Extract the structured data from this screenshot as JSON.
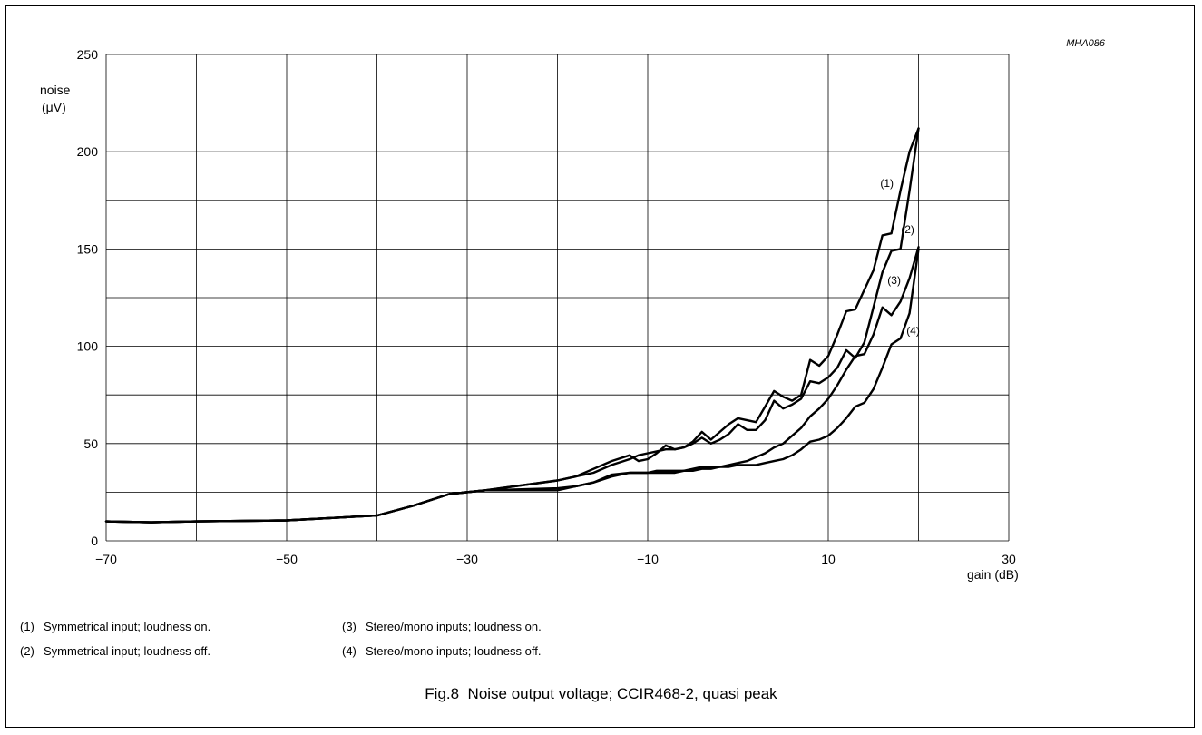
{
  "chart_data": {
    "type": "line",
    "code": "MHA086",
    "ylabel_line1": "noise",
    "ylabel_line2": "(μV)",
    "xlabel": "gain (dB)",
    "xlim": [
      -70,
      30
    ],
    "ylim": [
      0,
      250
    ],
    "x_tick_labels": [
      {
        "value": -70,
        "label": "−70"
      },
      {
        "value": -50,
        "label": "−50"
      },
      {
        "value": -30,
        "label": "−30"
      },
      {
        "value": -10,
        "label": "−10"
      },
      {
        "value": 10,
        "label": "10"
      },
      {
        "value": 30,
        "label": "30"
      }
    ],
    "y_tick_labels": [
      {
        "value": 0,
        "label": "0"
      },
      {
        "value": 50,
        "label": "50"
      },
      {
        "value": 100,
        "label": "100"
      },
      {
        "value": 150,
        "label": "150"
      },
      {
        "value": 200,
        "label": "200"
      },
      {
        "value": 250,
        "label": "250"
      }
    ],
    "grid_x_step": 10,
    "grid_y_step": 25,
    "grid": true,
    "series": [
      {
        "name": "(1)",
        "label_at": [
          16.5,
          182
        ],
        "x": [
          -70,
          -65,
          -60,
          -50,
          -40,
          -36,
          -32,
          -28,
          -20,
          -18,
          -16,
          -14,
          -12,
          -11,
          -10,
          -9,
          -8,
          -7,
          -6,
          -5,
          -4,
          -3,
          -2,
          -1,
          0,
          1,
          2,
          3,
          4,
          5,
          6,
          7,
          8,
          9,
          10,
          11,
          12,
          13,
          14,
          15,
          16,
          17,
          18,
          19,
          20
        ],
        "y": [
          10,
          9.5,
          10,
          10.5,
          13,
          18,
          24,
          26,
          31,
          33,
          37,
          41,
          44,
          41,
          42,
          45,
          49,
          47,
          48,
          51,
          56,
          52,
          56,
          60,
          63,
          62,
          61,
          69,
          77,
          74,
          72,
          75,
          93,
          90,
          95,
          106,
          118,
          119,
          129,
          139,
          157,
          158,
          180,
          200,
          212
        ]
      },
      {
        "name": "(2)",
        "label_at": [
          18.8,
          158
        ],
        "x": [
          -70,
          -65,
          -60,
          -50,
          -40,
          -36,
          -32,
          -28,
          -20,
          -18,
          -16,
          -14,
          -12,
          -11,
          -10,
          -9,
          -8,
          -7,
          -6,
          -5,
          -4,
          -3,
          -2,
          -1,
          0,
          1,
          2,
          3,
          4,
          5,
          6,
          7,
          8,
          9,
          10,
          11,
          12,
          13,
          14,
          15,
          16,
          17,
          18,
          19,
          20
        ],
        "y": [
          10,
          9.5,
          10,
          10.5,
          13,
          18,
          24,
          26,
          31,
          33,
          35,
          39,
          42,
          44,
          45,
          46,
          47,
          47,
          48,
          50,
          53,
          50,
          52,
          55,
          60,
          57,
          57,
          62,
          72,
          68,
          70,
          73,
          82,
          81,
          84,
          89,
          98,
          94,
          102,
          120,
          138,
          149,
          150,
          180,
          212
        ]
      },
      {
        "name": "(3)",
        "label_at": [
          17.3,
          132
        ],
        "x": [
          -70,
          -65,
          -60,
          -50,
          -40,
          -36,
          -32,
          -28,
          -20,
          -18,
          -16,
          -14,
          -12,
          -11,
          -10,
          -9,
          -8,
          -7,
          -6,
          -5,
          -4,
          -3,
          -2,
          -1,
          0,
          1,
          2,
          3,
          4,
          5,
          6,
          7,
          8,
          9,
          10,
          11,
          12,
          13,
          14,
          15,
          16,
          17,
          18,
          19,
          20
        ],
        "y": [
          10,
          9.5,
          10,
          10.5,
          13,
          18,
          24,
          26,
          27,
          28,
          30,
          33,
          35,
          35,
          35,
          36,
          36,
          36,
          36,
          36,
          37,
          37,
          38,
          39,
          40,
          41,
          43,
          45,
          48,
          50,
          54,
          58,
          64,
          68,
          73,
          80,
          88,
          95,
          96,
          106,
          120,
          116,
          123,
          135,
          151
        ]
      },
      {
        "name": "(4)",
        "label_at": [
          19.4,
          106
        ],
        "x": [
          -70,
          -65,
          -60,
          -50,
          -40,
          -36,
          -32,
          -28,
          -20,
          -18,
          -16,
          -14,
          -12,
          -11,
          -10,
          -9,
          -8,
          -7,
          -6,
          -5,
          -4,
          -3,
          -2,
          -1,
          0,
          1,
          2,
          3,
          4,
          5,
          6,
          7,
          8,
          9,
          10,
          11,
          12,
          13,
          14,
          15,
          16,
          17,
          18,
          19,
          20
        ],
        "y": [
          10,
          9.5,
          10,
          10.5,
          13,
          18,
          24,
          26,
          26,
          28,
          30,
          34,
          35,
          35,
          35,
          35,
          35,
          35,
          36,
          37,
          38,
          38,
          38,
          38,
          39,
          39,
          39,
          40,
          41,
          42,
          44,
          47,
          51,
          52,
          54,
          58,
          63,
          69,
          71,
          78,
          89,
          101,
          104,
          117,
          150
        ]
      }
    ]
  },
  "legend": [
    {
      "num": "(1)",
      "text": "Symmetrical input; loudness on."
    },
    {
      "num": "(2)",
      "text": "Symmetrical input; loudness off."
    },
    {
      "num": "(3)",
      "text": "Stereo/mono inputs; loudness on."
    },
    {
      "num": "(4)",
      "text": "Stereo/mono inputs; loudness off."
    }
  ],
  "caption": "Fig.8  Noise output voltage; CCIR468-2, quasi peak"
}
